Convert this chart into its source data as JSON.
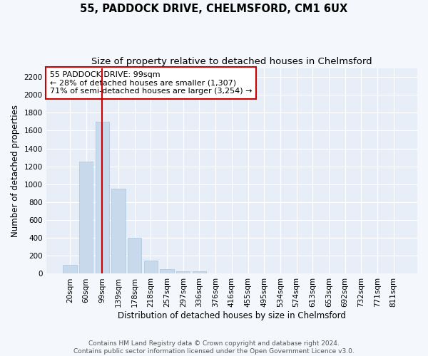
{
  "title": "55, PADDOCK DRIVE, CHELMSFORD, CM1 6UX",
  "subtitle": "Size of property relative to detached houses in Chelmsford",
  "xlabel": "Distribution of detached houses by size in Chelmsford",
  "ylabel": "Number of detached properties",
  "categories": [
    "20sqm",
    "60sqm",
    "99sqm",
    "139sqm",
    "178sqm",
    "218sqm",
    "257sqm",
    "297sqm",
    "336sqm",
    "376sqm",
    "416sqm",
    "455sqm",
    "495sqm",
    "534sqm",
    "574sqm",
    "613sqm",
    "653sqm",
    "692sqm",
    "732sqm",
    "771sqm",
    "811sqm"
  ],
  "values": [
    100,
    1250,
    1700,
    950,
    400,
    150,
    55,
    30,
    25,
    0,
    0,
    0,
    0,
    0,
    0,
    0,
    0,
    0,
    0,
    0,
    0
  ],
  "bar_color": "#c9d9ec",
  "bar_edge_color": "#a8c4dc",
  "highlight_index": 2,
  "highlight_line_color": "#cc0000",
  "ylim": [
    0,
    2300
  ],
  "yticks": [
    0,
    200,
    400,
    600,
    800,
    1000,
    1200,
    1400,
    1600,
    1800,
    2000,
    2200
  ],
  "annotation_text": "55 PADDOCK DRIVE: 99sqm\n← 28% of detached houses are smaller (1,307)\n71% of semi-detached houses are larger (3,254) →",
  "annotation_box_color": "#ffffff",
  "annotation_box_edge": "#cc0000",
  "footer_line1": "Contains HM Land Registry data © Crown copyright and database right 2024.",
  "footer_line2": "Contains public sector information licensed under the Open Government Licence v3.0.",
  "fig_bg_color": "#f4f7fb",
  "plot_bg_color": "#e8eef7",
  "grid_color": "#ffffff",
  "title_fontsize": 10.5,
  "subtitle_fontsize": 9.5,
  "tick_fontsize": 7.5,
  "ylabel_fontsize": 8.5,
  "xlabel_fontsize": 8.5,
  "annotation_fontsize": 8,
  "footer_fontsize": 6.5
}
